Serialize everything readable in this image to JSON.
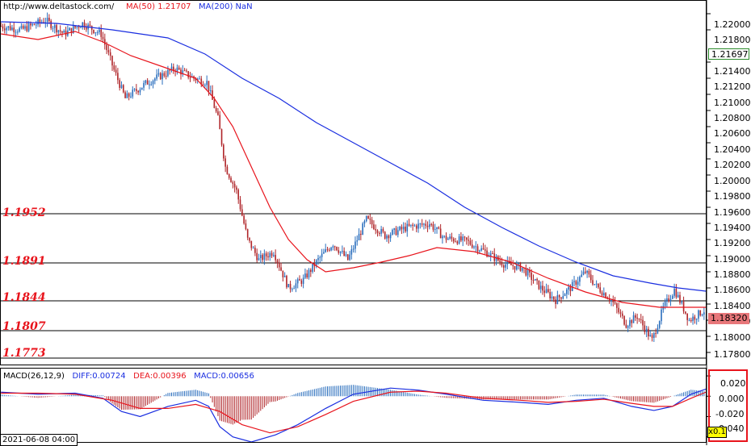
{
  "header": {
    "source": "http://www.deltastock.com/",
    "ma50_label": "MA(50)",
    "ma50_value": "1.21707",
    "ma200_label": "MA(200)",
    "ma200_value": "NaN"
  },
  "macd_header": {
    "title": "MACD(26,12,9)",
    "diff": "DIFF:0.00724",
    "dea": "DEA:0.00396",
    "macd": "MACD:0.00656"
  },
  "levels": [
    {
      "label": "1.1952",
      "value": 1.1952
    },
    {
      "label": "1.1891",
      "value": 1.1891
    },
    {
      "label": "1.1844",
      "value": 1.1844
    },
    {
      "label": "1.1807",
      "value": 1.1807
    },
    {
      "label": "1.1773",
      "value": 1.1773
    }
  ],
  "price_axis_ticks": [
    "1.22000",
    "1.21800",
    "1.21400",
    "1.21200",
    "1.21000",
    "1.20800",
    "1.20600",
    "1.20400",
    "1.20200",
    "1.20000",
    "1.19800",
    "1.19600",
    "1.19400",
    "1.19200",
    "1.19000",
    "1.18800",
    "1.18600",
    "1.18400",
    "1.18200",
    "1.18000",
    "1.17800"
  ],
  "price_labels": {
    "top": "1.21697",
    "current": "1.18320"
  },
  "macd_axis_ticks": [
    "0.020",
    "0.000",
    "-0.020",
    "-0.040"
  ],
  "date_label": "2021-06-08 04:00",
  "zoom_label": "x0.1",
  "colors": {
    "up": "#2a6ebd",
    "down": "#b0262a",
    "ma50": "#e8141c",
    "ma200": "#1a2ee0",
    "levels_text": "#e8141c"
  },
  "chart_data": [
    {
      "type": "candlestick",
      "title": "",
      "ylim": [
        1.1765,
        1.2215
      ],
      "candles_count": 380,
      "waypoints": [
        [
          0,
          1.2185
        ],
        [
          12,
          1.218
        ],
        [
          25,
          1.2192
        ],
        [
          35,
          1.2175
        ],
        [
          45,
          1.2188
        ],
        [
          55,
          1.2175
        ],
        [
          62,
          1.213
        ],
        [
          68,
          1.2095
        ],
        [
          80,
          1.2115
        ],
        [
          95,
          1.2132
        ],
        [
          105,
          1.212
        ],
        [
          112,
          1.2115
        ],
        [
          118,
          1.207
        ],
        [
          122,
          1.201
        ],
        [
          128,
          1.198
        ],
        [
          134,
          1.192
        ],
        [
          140,
          1.1895
        ],
        [
          148,
          1.1905
        ],
        [
          156,
          1.186
        ],
        [
          164,
          1.187
        ],
        [
          172,
          1.1895
        ],
        [
          180,
          1.1915
        ],
        [
          188,
          1.1895
        ],
        [
          198,
          1.1945
        ],
        [
          208,
          1.1925
        ],
        [
          220,
          1.1935
        ],
        [
          232,
          1.194
        ],
        [
          240,
          1.1922
        ],
        [
          252,
          1.1918
        ],
        [
          262,
          1.1905
        ],
        [
          272,
          1.189
        ],
        [
          282,
          1.1885
        ],
        [
          292,
          1.186
        ],
        [
          300,
          1.1845
        ],
        [
          308,
          1.186
        ],
        [
          316,
          1.188
        ],
        [
          322,
          1.1862
        ],
        [
          330,
          1.1845
        ],
        [
          338,
          1.1815
        ],
        [
          344,
          1.1825
        ],
        [
          352,
          1.1795
        ],
        [
          358,
          1.1835
        ],
        [
          364,
          1.1858
        ],
        [
          372,
          1.182
        ],
        [
          380,
          1.1832
        ]
      ],
      "ma50": {
        "name": "MA(50)",
        "points": [
          [
            0,
            1.2175
          ],
          [
            20,
            1.2168
          ],
          [
            40,
            1.2178
          ],
          [
            55,
            1.2165
          ],
          [
            70,
            1.2148
          ],
          [
            90,
            1.2132
          ],
          [
            105,
            1.212
          ],
          [
            115,
            1.2095
          ],
          [
            125,
            1.206
          ],
          [
            135,
            1.201
          ],
          [
            145,
            1.196
          ],
          [
            155,
            1.192
          ],
          [
            165,
            1.1895
          ],
          [
            175,
            1.188
          ],
          [
            190,
            1.1885
          ],
          [
            205,
            1.1892
          ],
          [
            220,
            1.19
          ],
          [
            235,
            1.191
          ],
          [
            255,
            1.1905
          ],
          [
            275,
            1.1892
          ],
          [
            295,
            1.1872
          ],
          [
            315,
            1.1855
          ],
          [
            335,
            1.1842
          ],
          [
            355,
            1.1836
          ],
          [
            380,
            1.1836
          ]
        ]
      },
      "ma200": {
        "name": "MA(200)",
        "points": [
          [
            0,
            1.219
          ],
          [
            30,
            1.2188
          ],
          [
            60,
            1.218
          ],
          [
            90,
            1.217
          ],
          [
            110,
            1.215
          ],
          [
            130,
            1.212
          ],
          [
            150,
            1.2095
          ],
          [
            170,
            1.2065
          ],
          [
            190,
            1.204
          ],
          [
            210,
            1.2015
          ],
          [
            230,
            1.199
          ],
          [
            250,
            1.196
          ],
          [
            270,
            1.1935
          ],
          [
            290,
            1.1912
          ],
          [
            310,
            1.1892
          ],
          [
            330,
            1.1875
          ],
          [
            350,
            1.1866
          ],
          [
            365,
            1.186
          ],
          [
            380,
            1.1856
          ]
        ]
      }
    },
    {
      "type": "macd",
      "title": "MACD(26,12,9)",
      "ylim": [
        -0.045,
        0.028
      ],
      "diff_points": [
        [
          0,
          0.004
        ],
        [
          20,
          0.002
        ],
        [
          40,
          0.003
        ],
        [
          55,
          -0.002
        ],
        [
          65,
          -0.015
        ],
        [
          75,
          -0.02
        ],
        [
          90,
          -0.01
        ],
        [
          105,
          -0.004
        ],
        [
          112,
          -0.01
        ],
        [
          118,
          -0.03
        ],
        [
          125,
          -0.04
        ],
        [
          135,
          -0.045
        ],
        [
          148,
          -0.038
        ],
        [
          160,
          -0.028
        ],
        [
          175,
          -0.012
        ],
        [
          190,
          0.002
        ],
        [
          210,
          0.008
        ],
        [
          225,
          0.006
        ],
        [
          240,
          0.002
        ],
        [
          260,
          -0.004
        ],
        [
          280,
          -0.006
        ],
        [
          295,
          -0.008
        ],
        [
          310,
          -0.004
        ],
        [
          325,
          -0.002
        ],
        [
          340,
          -0.01
        ],
        [
          352,
          -0.014
        ],
        [
          362,
          -0.01
        ],
        [
          372,
          0.002
        ],
        [
          380,
          0.007
        ]
      ],
      "dea_points": [
        [
          0,
          0.003
        ],
        [
          20,
          0.003
        ],
        [
          40,
          0.002
        ],
        [
          60,
          -0.004
        ],
        [
          75,
          -0.012
        ],
        [
          90,
          -0.012
        ],
        [
          105,
          -0.008
        ],
        [
          118,
          -0.015
        ],
        [
          130,
          -0.028
        ],
        [
          145,
          -0.036
        ],
        [
          160,
          -0.03
        ],
        [
          175,
          -0.018
        ],
        [
          190,
          -0.005
        ],
        [
          210,
          0.004
        ],
        [
          225,
          0.005
        ],
        [
          240,
          0.003
        ],
        [
          260,
          -0.002
        ],
        [
          280,
          -0.004
        ],
        [
          295,
          -0.006
        ],
        [
          310,
          -0.005
        ],
        [
          325,
          -0.003
        ],
        [
          340,
          -0.007
        ],
        [
          352,
          -0.01
        ],
        [
          362,
          -0.01
        ],
        [
          372,
          -0.002
        ],
        [
          380,
          0.004
        ]
      ]
    }
  ]
}
